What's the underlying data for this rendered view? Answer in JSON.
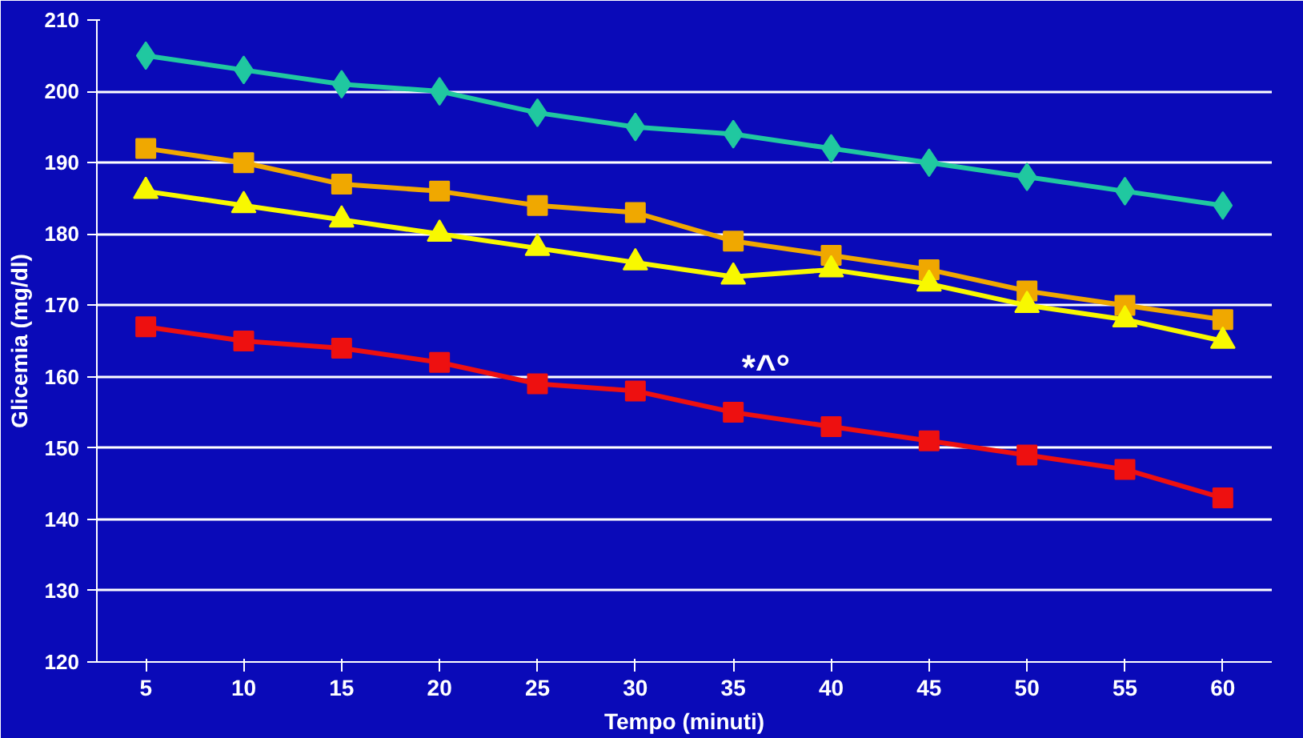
{
  "chart_data": {
    "type": "line",
    "xlabel": "Tempo (minuti)",
    "ylabel": "Glicemia (mg/dl)",
    "categories": [
      "5",
      "10",
      "15",
      "20",
      "25",
      "30",
      "35",
      "40",
      "45",
      "50",
      "55",
      "60"
    ],
    "ylim": [
      120,
      210
    ],
    "yticks": [
      120,
      130,
      140,
      150,
      160,
      170,
      180,
      190,
      200,
      210
    ],
    "grid": "y",
    "series": [
      {
        "color": "#20c8a0",
        "marker": "diamond",
        "values": [
          205,
          203,
          201,
          200,
          197,
          195,
          194,
          192,
          190,
          188,
          186,
          184
        ]
      },
      {
        "color": "#f0a800",
        "marker": "square",
        "values": [
          192,
          190,
          187,
          186,
          184,
          183,
          179,
          177,
          175,
          172,
          170,
          168
        ]
      },
      {
        "color": "#f8f800",
        "marker": "triangle",
        "values": [
          186,
          184,
          182,
          180,
          178,
          176,
          174,
          175,
          173,
          170,
          168,
          165
        ]
      },
      {
        "color": "#ee1010",
        "marker": "square",
        "values": [
          167,
          165,
          164,
          162,
          159,
          158,
          155,
          153,
          151,
          149,
          147,
          143
        ]
      }
    ],
    "annotations": [
      "*^°"
    ]
  }
}
